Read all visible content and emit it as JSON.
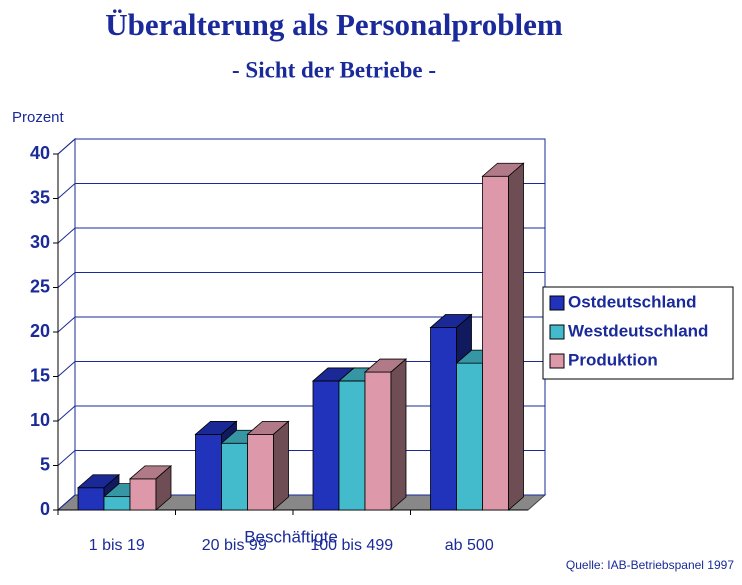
{
  "chart_data": {
    "type": "bar3d",
    "title": "Überalterung als Personalproblem",
    "subtitle": "- Sicht der Betriebe -",
    "ylabel": "Prozent",
    "xlabel": "Beschäftigte",
    "source": "Quelle: IAB-Betriebspanel 1997",
    "categories": [
      "1 bis 19",
      "20 bis 99",
      "100 bis 499",
      "ab 500"
    ],
    "series": [
      {
        "name": "Ostdeutschland",
        "color": "#2233bb",
        "values": [
          2.5,
          8.5,
          14.5,
          20.5
        ]
      },
      {
        "name": "Westdeutschland",
        "color": "#44bbcc",
        "values": [
          1.5,
          7.5,
          14.5,
          16.5
        ]
      },
      {
        "name": "Produktion",
        "color": "#dd99aa",
        "values": [
          3.5,
          8.5,
          15.5,
          37.5
        ]
      }
    ],
    "ylim": [
      0,
      40
    ],
    "yticks": [
      0,
      5,
      10,
      15,
      20,
      25,
      30,
      35,
      40
    ],
    "grid": true
  }
}
